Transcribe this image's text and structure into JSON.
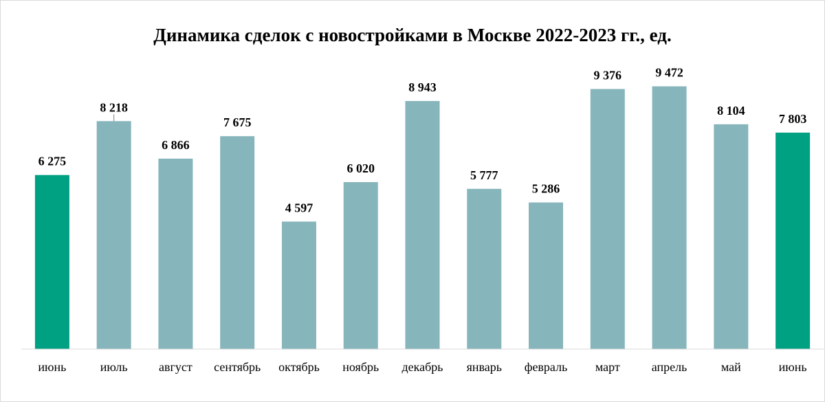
{
  "chart_data": {
    "type": "bar",
    "title": "Динамика сделок с новостройками в Москве 2022-2023 гг., ед.",
    "categories": [
      "июнь",
      "июль",
      "август",
      "сентябрь",
      "октябрь",
      "ноябрь",
      "декабрь",
      "январь",
      "февраль",
      "март",
      "апрель",
      "май",
      "июнь"
    ],
    "values": [
      6275,
      8218,
      6866,
      7675,
      4597,
      6020,
      8943,
      5777,
      5286,
      9376,
      9472,
      8104,
      7803
    ],
    "value_labels": [
      "6 275",
      "8 218",
      "6 866",
      "7 675",
      "4 597",
      "6 020",
      "8 943",
      "5 777",
      "5 286",
      "9 376",
      "9 472",
      "8 104",
      "7 803"
    ],
    "highlight_indices": [
      0,
      12
    ],
    "ylim": [
      0,
      10900
    ],
    "grid": false,
    "legend": "none",
    "colors": {
      "bar": "#86b5bb",
      "highlight": "#00a082",
      "axis": "#d9d9d9"
    }
  }
}
